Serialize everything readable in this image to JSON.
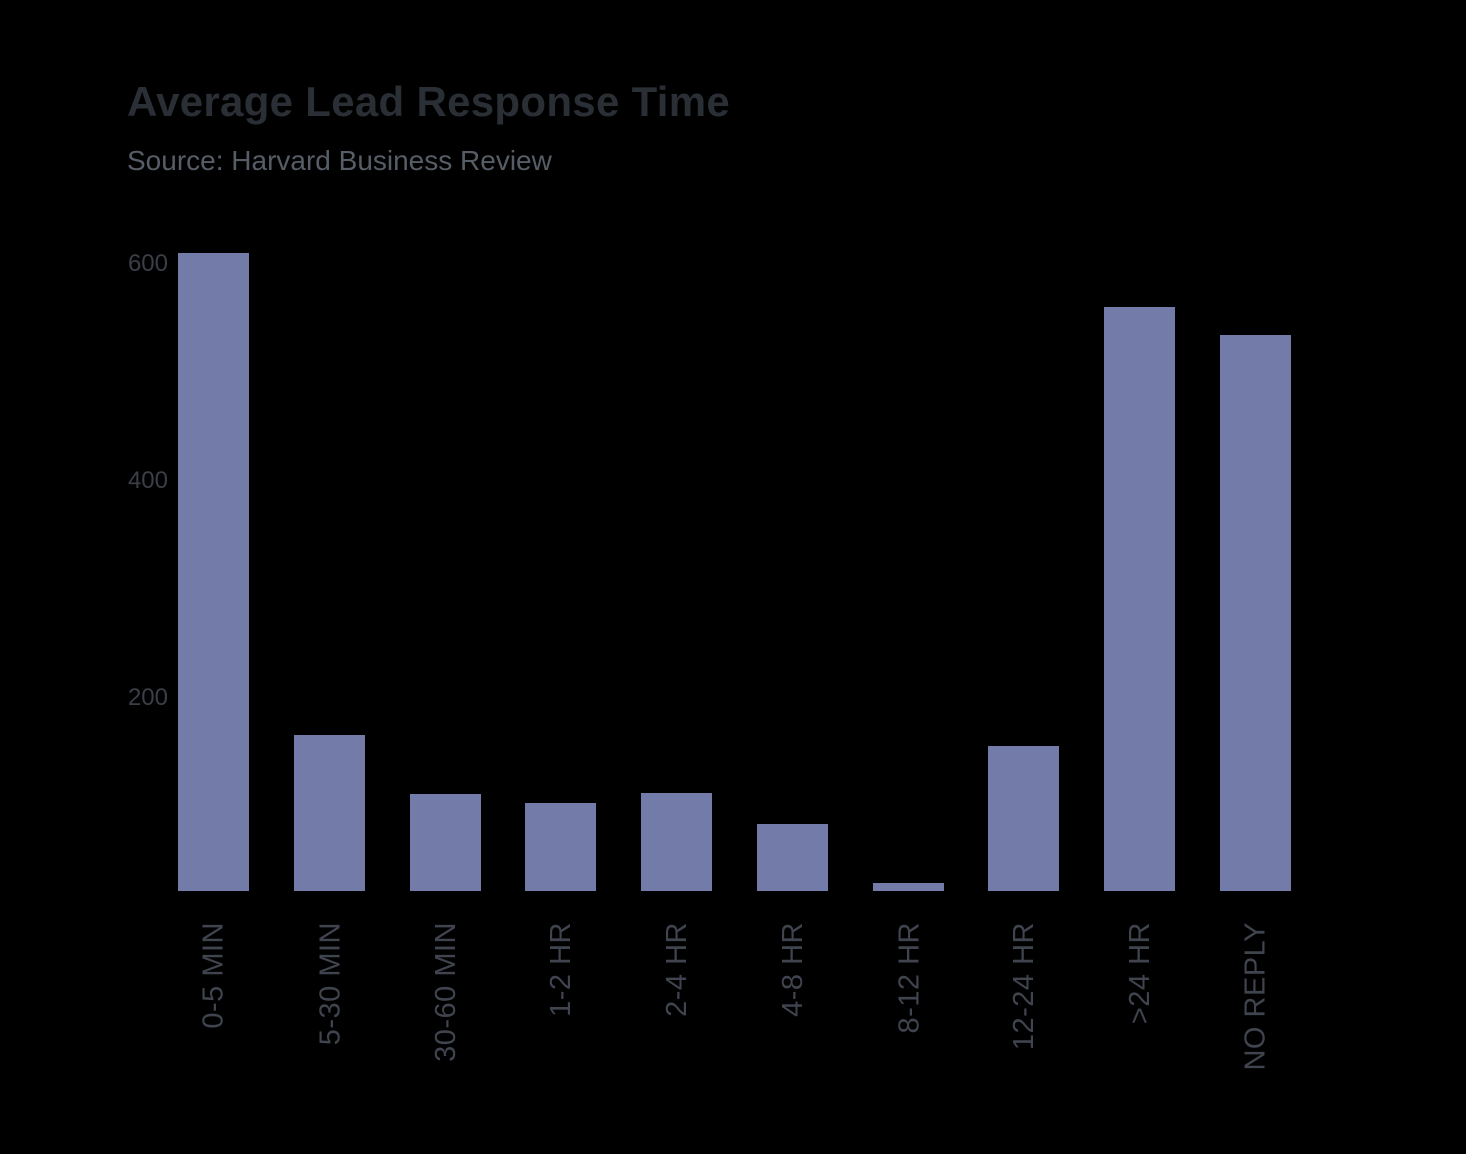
{
  "chart_data": {
    "type": "bar",
    "title": "Average Lead Response Time",
    "subtitle": "Source: Harvard Business Review",
    "categories": [
      "0-5 MIN",
      "5-30 MIN",
      "30-60 MIN",
      "1-2 HR",
      "2-4 HR",
      "4-8 HR",
      "8-12 HR",
      "12-24 HR",
      ">24 HR",
      "NO REPLY"
    ],
    "values": [
      588,
      144,
      89,
      81,
      90,
      62,
      7,
      134,
      538,
      512
    ],
    "xlabel": "",
    "ylabel": "",
    "ylim": [
      0,
      620
    ],
    "yticks": [
      200,
      400,
      600
    ],
    "grid": false,
    "legend": false,
    "x_label_rotation": -90,
    "colors": {
      "background": "#000000",
      "bar": "#737CA8",
      "title_text": "#2A2E35",
      "subtitle_text": "#575D66",
      "y_tick_text": "#3A3F47",
      "x_tick_text": "#3F444E"
    }
  }
}
